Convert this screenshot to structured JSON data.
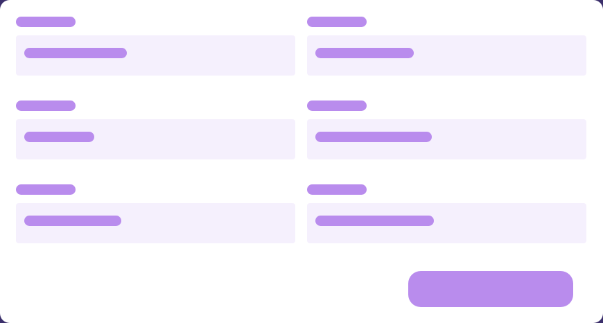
{
  "form": {
    "fields": [
      {
        "label": "",
        "value": "",
        "placeholder": ""
      },
      {
        "label": "",
        "value": "",
        "placeholder": ""
      },
      {
        "label": "",
        "value": "",
        "placeholder": ""
      },
      {
        "label": "",
        "value": "",
        "placeholder": ""
      },
      {
        "label": "",
        "value": "",
        "placeholder": ""
      },
      {
        "label": "",
        "value": "",
        "placeholder": ""
      }
    ],
    "submit_label": ""
  },
  "colors": {
    "page_background": "#3b2f6b",
    "card_background": "#ffffff",
    "input_background": "#f5f0fd",
    "accent": "#b98ced"
  }
}
